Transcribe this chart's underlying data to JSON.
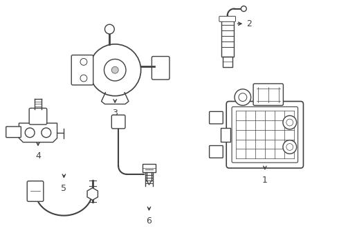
{
  "background_color": "#ffffff",
  "line_color": "#404040",
  "figsize": [
    4.9,
    3.6
  ],
  "dpi": 100,
  "label_fontsize": 9
}
